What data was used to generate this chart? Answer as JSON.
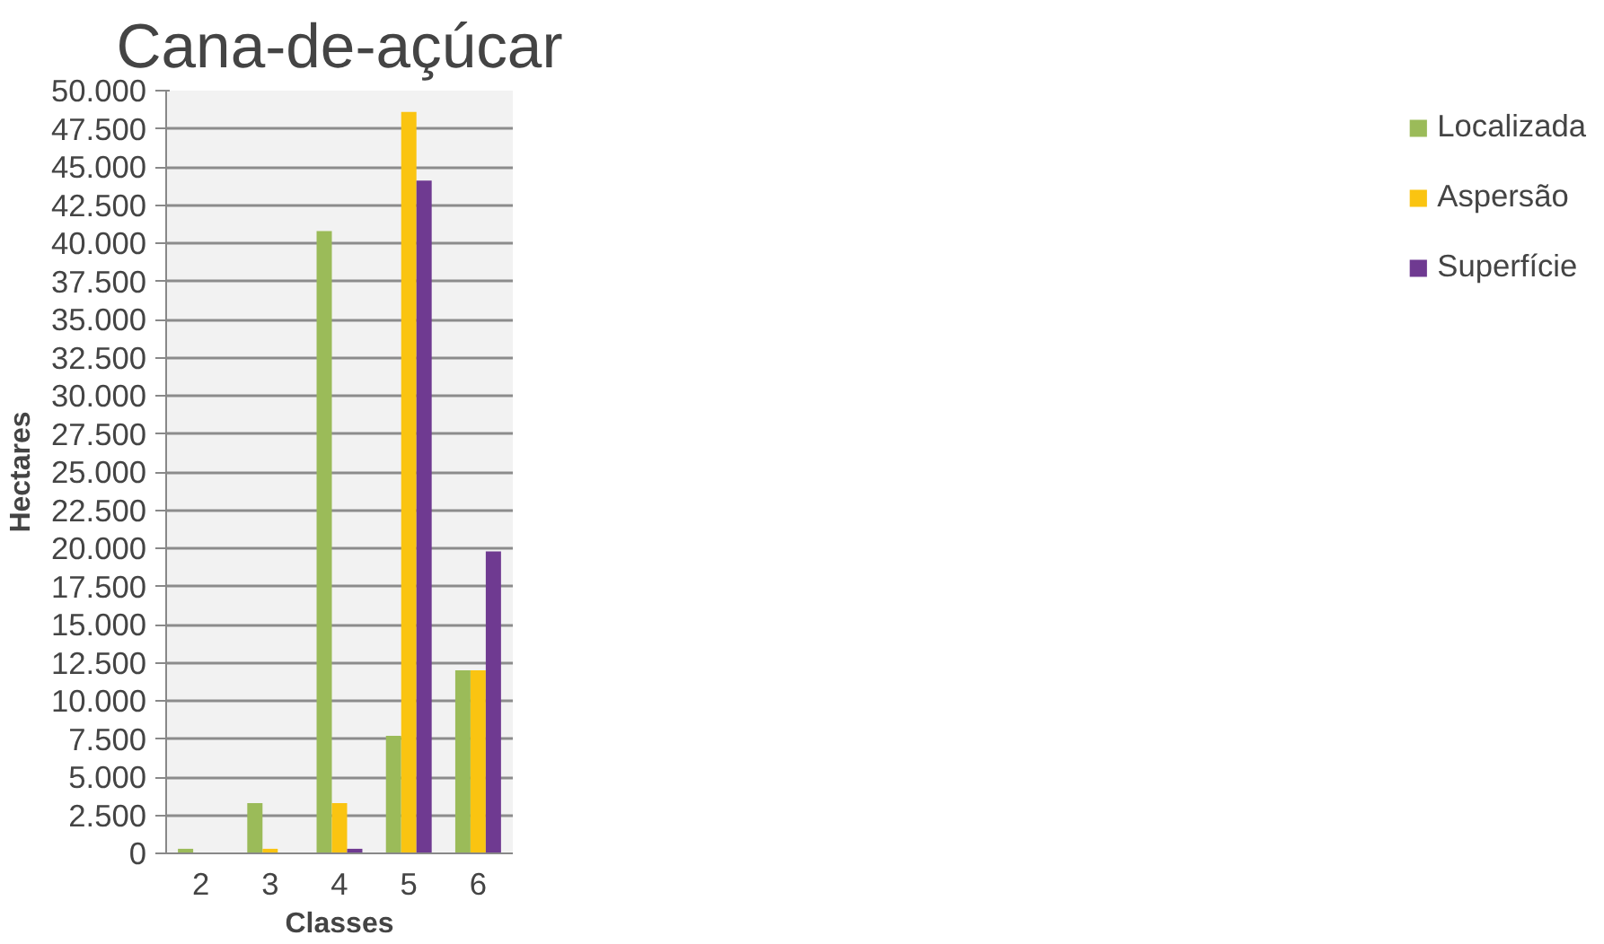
{
  "chart_data": {
    "type": "bar",
    "title": "Cana-de-açúcar",
    "xlabel": "Classes",
    "ylabel": "Hectares",
    "categories": [
      "2",
      "3",
      "4",
      "5",
      "6"
    ],
    "series": [
      {
        "name": "Localizada",
        "color": "#9bbb59",
        "values": [
          300,
          3300,
          40800,
          7700,
          12000
        ]
      },
      {
        "name": "Aspersão",
        "color": "#fac411",
        "values": [
          0,
          300,
          3300,
          48600,
          12000
        ]
      },
      {
        "name": "Superfície",
        "color": "#6f3a91",
        "values": [
          0,
          0,
          300,
          44100,
          19800
        ]
      }
    ],
    "ylim": [
      0,
      50000
    ],
    "yticks": [
      {
        "value": 0,
        "label": "0"
      },
      {
        "value": 2500,
        "label": "2.500"
      },
      {
        "value": 5000,
        "label": "5.000"
      },
      {
        "value": 7500,
        "label": "7.500"
      },
      {
        "value": 10000,
        "label": "10.000"
      },
      {
        "value": 12500,
        "label": "12.500"
      },
      {
        "value": 15000,
        "label": "15.000"
      },
      {
        "value": 17500,
        "label": "17.500"
      },
      {
        "value": 20000,
        "label": "20.000"
      },
      {
        "value": 22500,
        "label": "22.500"
      },
      {
        "value": 25000,
        "label": "25.000"
      },
      {
        "value": 27500,
        "label": "27.500"
      },
      {
        "value": 30000,
        "label": "30.000"
      },
      {
        "value": 32500,
        "label": "32.500"
      },
      {
        "value": 35000,
        "label": "35.000"
      },
      {
        "value": 37500,
        "label": "37.500"
      },
      {
        "value": 40000,
        "label": "40.000"
      },
      {
        "value": 42500,
        "label": "42.500"
      },
      {
        "value": 45000,
        "label": "45.000"
      },
      {
        "value": 47500,
        "label": "47.500"
      },
      {
        "value": 50000,
        "label": "50.000"
      }
    ],
    "grid": "y",
    "legend": "right"
  }
}
